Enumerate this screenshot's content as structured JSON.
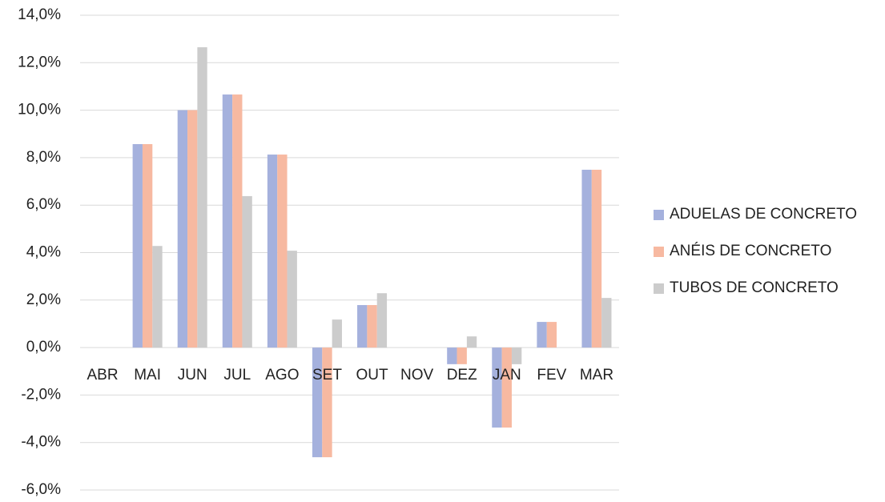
{
  "chart_data": {
    "type": "bar",
    "categories": [
      "ABR",
      "MAI",
      "JUN",
      "JUL",
      "AGO",
      "SET",
      "OUT",
      "NOV",
      "DEZ",
      "JAN",
      "FEV",
      "MAR"
    ],
    "series": [
      {
        "name": "ADUELAS DE CONCRETO",
        "color": "#a5b1dd",
        "values": [
          0,
          8.57,
          10.0,
          10.66,
          8.13,
          -4.62,
          1.79,
          0,
          -0.7,
          -3.37,
          1.08,
          7.49
        ]
      },
      {
        "name": "ANÉIS DE CONCRETO",
        "color": "#f7b9a1",
        "values": [
          0,
          8.57,
          10.0,
          10.66,
          8.13,
          -4.62,
          1.79,
          0,
          -0.7,
          -3.37,
          1.08,
          7.49
        ]
      },
      {
        "name": "TUBOS DE CONCRETO",
        "color": "#cccccc",
        "values": [
          0,
          4.28,
          12.65,
          6.38,
          4.08,
          1.18,
          2.29,
          0,
          0.47,
          -0.7,
          0,
          2.09
        ]
      }
    ],
    "ylim": [
      -6,
      14
    ],
    "yticks": [
      {
        "value": -6,
        "label": "-6,0%"
      },
      {
        "value": -4,
        "label": "-4,0%"
      },
      {
        "value": -2,
        "label": "-2,0%"
      },
      {
        "value": 0,
        "label": "0,0%"
      },
      {
        "value": 2,
        "label": "2,0%"
      },
      {
        "value": 4,
        "label": "4,0%"
      },
      {
        "value": 6,
        "label": "6,0%"
      },
      {
        "value": 8,
        "label": "8,0%"
      },
      {
        "value": 10,
        "label": "10,0%"
      },
      {
        "value": 12,
        "label": "12,0%"
      },
      {
        "value": 14,
        "label": "14,0%"
      }
    ],
    "grid": true,
    "legend": "right"
  }
}
